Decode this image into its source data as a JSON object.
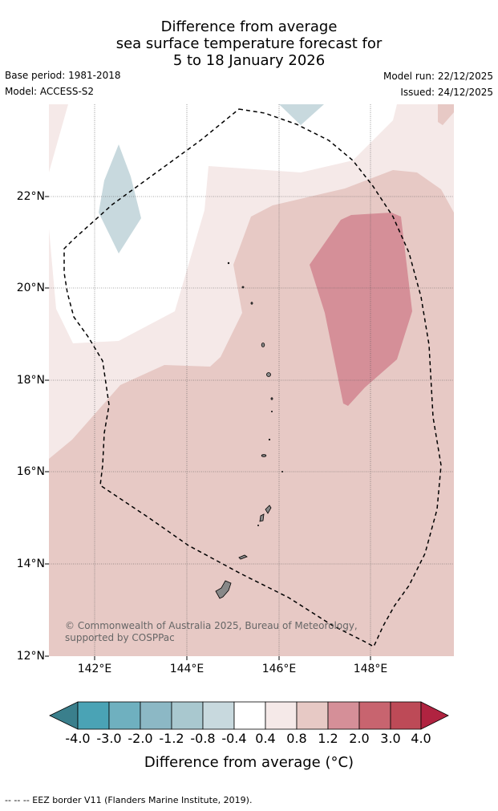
{
  "title": {
    "line1": "Difference from average",
    "line2": "sea surface temperature forecast for",
    "line3": "5 to 18 January 2026"
  },
  "meta": {
    "base_period": "Base period: 1981-2018",
    "model": "Model: ACCESS-S2",
    "model_run": "Model run: 22/12/2025",
    "issued": "Issued: 24/12/2025"
  },
  "map": {
    "lon_range": [
      141,
      149.8
    ],
    "lat_range": [
      12,
      24
    ],
    "lat_ticks": [
      "22°N",
      "20°N",
      "18°N",
      "16°N",
      "14°N",
      "12°N"
    ],
    "lon_ticks": [
      "142°E",
      "144°E",
      "146°E",
      "148°E"
    ],
    "copyright": "© Commonwealth of Australia 2025, Bureau of Meteorology, supported by COSPPac",
    "regions": [
      {
        "label": "anomaly 0.4 to 0.8",
        "color": "#f5e9e8"
      },
      {
        "label": "anomaly 0.8 to 1.2",
        "color": "#e7c9c5"
      },
      {
        "label": "anomaly 1.2 to 2.0",
        "color": "#d58f98"
      },
      {
        "label": "anomaly -0.8 to -0.4",
        "color": "#c8d9de"
      }
    ]
  },
  "colorbar": {
    "ticks": [
      "-4.0",
      "-3.0",
      "-2.0",
      "-1.2",
      "-0.8",
      "-0.4",
      "0.4",
      "0.8",
      "1.2",
      "2.0",
      "3.0",
      "4.0"
    ],
    "colors": [
      "#3a7f8c",
      "#4aa3b5",
      "#6fb0bf",
      "#8cb8c5",
      "#a9c8cf",
      "#c8d9de",
      "#ffffff",
      "#f5e9e8",
      "#e7c9c5",
      "#d58f98",
      "#c8646f",
      "#bd4a57",
      "#b02340"
    ],
    "label": "Difference from average (°C)"
  },
  "footnote": "--  --  -- EEZ border V11 (Flanders Marine Institute, 2019)."
}
